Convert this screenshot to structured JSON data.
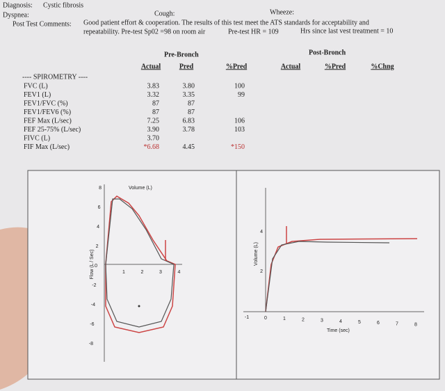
{
  "header": {
    "diagnosis_label": "Diagnosis:",
    "diagnosis": "Cystic fibrosis",
    "dyspnea": "Dyspnea:",
    "cough": "Cough:",
    "wheeze": "Wheeze:",
    "comments_label": "Post Test Comments:",
    "comments_line1": "Good patient effort & cooperation. The results of this test meet the ATS standards for acceptability and",
    "comments_line2": "repeatability. Pre-test Sp02 =98 on room air",
    "hr": "Pre-test HR = 109",
    "vest": "Hrs since last vest treatment = 10"
  },
  "table": {
    "pre_group": "Pre-Bronch",
    "post_group": "Post-Bronch",
    "columns": [
      "Actual",
      "Pred",
      "%Pred",
      "Actual",
      "%Pred",
      "%Chng"
    ],
    "section": "---- SPIROMETRY ----",
    "rows": [
      {
        "label": "FVC (L)",
        "actual": "3.83",
        "pred": "3.80",
        "pct_pred": "100"
      },
      {
        "label": "FEV1 (L)",
        "actual": "3.32",
        "pred": "3.35",
        "pct_pred": "99"
      },
      {
        "label": "FEV1/FVC (%)",
        "actual": "87",
        "pred": "87"
      },
      {
        "label": "FEV1/FEV6 (%)",
        "actual": "87",
        "pred": "87"
      },
      {
        "label": "FEF Max (L/sec)",
        "actual": "7.25",
        "pred": "6.83",
        "pct_pred": "106"
      },
      {
        "label": "FEF 25-75% (L/sec)",
        "actual": "3.90",
        "pred": "3.78",
        "pct_pred": "103"
      },
      {
        "label": "FIVC (L)",
        "actual": "3.70"
      },
      {
        "label": "FIF Max (L/sec)",
        "actual": "*6.68",
        "pred": "4.45",
        "pct_pred": "*150"
      }
    ]
  },
  "flow_volume": {
    "x_label": "Volume (L)",
    "y_label": "Flow (L / Sec)",
    "x_ticks": [
      "1",
      "2",
      "3",
      "4"
    ],
    "y_ticks": [
      "8",
      "6",
      "4",
      "2",
      "0",
      "-2",
      "-4",
      "-6",
      "-8"
    ]
  },
  "volume_time": {
    "x_label": "Time (sec)",
    "y_label": "Volume (L)",
    "x_ticks": [
      "-1",
      "0",
      "1",
      "2",
      "3",
      "4",
      "5",
      "6",
      "7",
      "8"
    ],
    "y_ticks": [
      "4",
      "2"
    ]
  }
}
